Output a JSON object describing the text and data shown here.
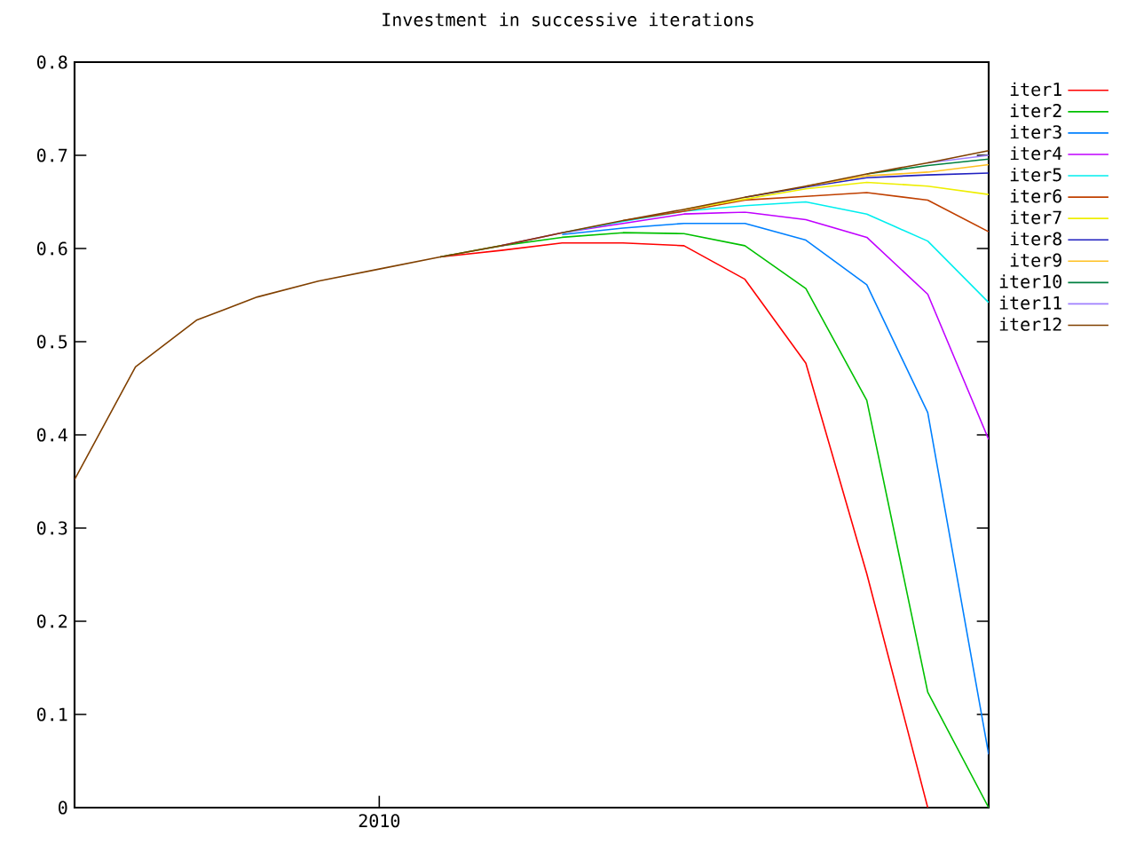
{
  "chart_data": {
    "type": "line",
    "title": "Investment in successive iterations",
    "categories": [
      null,
      null,
      null,
      null,
      null,
      "2010",
      null,
      null,
      null,
      null,
      null,
      null,
      null,
      null,
      null,
      null
    ],
    "ylim": [
      0,
      0.8
    ],
    "yticks": [
      0,
      0.1,
      0.2,
      0.3,
      0.4,
      0.5,
      0.6,
      0.7,
      0.8
    ],
    "legend": "top right",
    "series": [
      {
        "name": "iter1",
        "color": "#ff0000",
        "values": [
          null,
          null,
          null,
          null,
          null,
          null,
          0.591,
          0.598,
          0.606,
          0.606,
          0.603,
          0.567,
          0.477,
          0.251,
          0,
          null
        ]
      },
      {
        "name": "iter2",
        "color": "#00c000",
        "values": [
          null,
          null,
          null,
          null,
          null,
          null,
          0.591,
          0.603,
          0.612,
          0.617,
          0.616,
          0.603,
          0.557,
          0.437,
          0.124,
          0
        ]
      },
      {
        "name": "iter3",
        "color": "#0080ff",
        "values": [
          null,
          null,
          null,
          null,
          null,
          null,
          null,
          null,
          0.615,
          0.622,
          0.627,
          0.627,
          0.609,
          0.561,
          0.424,
          0.057
        ]
      },
      {
        "name": "iter4",
        "color": "#c000ff",
        "values": [
          null,
          null,
          null,
          null,
          null,
          null,
          null,
          0.603,
          0.617,
          0.627,
          0.637,
          0.639,
          0.631,
          0.612,
          0.551,
          0.395
        ]
      },
      {
        "name": "iter5",
        "color": "#00eeee",
        "values": [
          null,
          null,
          null,
          null,
          null,
          null,
          null,
          null,
          0.617,
          0.629,
          0.64,
          0.646,
          0.65,
          0.637,
          0.608,
          0.542
        ]
      },
      {
        "name": "iter6",
        "color": "#c04000",
        "values": [
          null,
          null,
          null,
          null,
          null,
          null,
          null,
          null,
          null,
          0.63,
          0.64,
          0.652,
          0.656,
          0.66,
          0.652,
          0.618
        ]
      },
      {
        "name": "iter7",
        "color": "#eeee00",
        "values": [
          null,
          null,
          null,
          null,
          null,
          null,
          null,
          null,
          null,
          null,
          0.642,
          0.653,
          0.664,
          0.671,
          0.667,
          0.658
        ]
      },
      {
        "name": "iter8",
        "color": "#2020c0",
        "values": [
          null,
          null,
          null,
          null,
          null,
          null,
          null,
          null,
          null,
          null,
          null,
          0.655,
          0.666,
          0.676,
          0.679,
          0.681
        ]
      },
      {
        "name": "iter9",
        "color": "#ffc020",
        "values": [
          null,
          null,
          null,
          null,
          null,
          null,
          null,
          null,
          null,
          null,
          null,
          null,
          0.667,
          0.678,
          0.682,
          0.69
        ]
      },
      {
        "name": "iter10",
        "color": "#008040",
        "values": [
          null,
          null,
          null,
          null,
          null,
          null,
          null,
          null,
          null,
          null,
          null,
          null,
          null,
          0.68,
          0.689,
          0.696
        ]
      },
      {
        "name": "iter11",
        "color": "#a080ff",
        "values": [
          null,
          null,
          null,
          null,
          null,
          null,
          null,
          null,
          null,
          null,
          null,
          null,
          null,
          null,
          0.692,
          0.7
        ]
      },
      {
        "name": "iter12",
        "color": "#804000",
        "values": [
          0.352,
          0.473,
          0.523,
          0.548,
          0.565,
          0.578,
          0.591,
          0.603,
          0.617,
          0.63,
          0.642,
          0.655,
          0.667,
          0.68,
          0.692,
          0.705
        ]
      }
    ]
  }
}
